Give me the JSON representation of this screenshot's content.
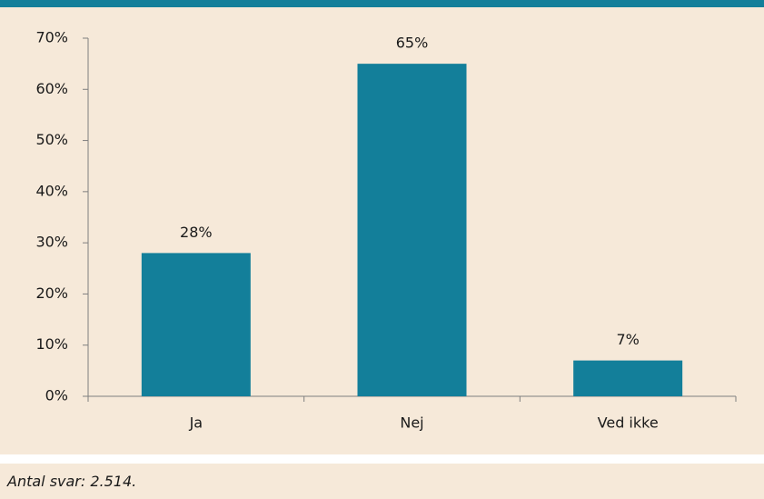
{
  "chart_data": {
    "type": "bar",
    "categories": [
      "Ja",
      "Nej",
      "Ved ikke"
    ],
    "values": [
      28,
      65,
      7
    ],
    "value_labels": [
      "28%",
      "65%",
      "7%"
    ],
    "color": "#137f9a",
    "ylim": [
      0,
      70
    ],
    "yticks": [
      {
        "value": 0,
        "label": "0%"
      },
      {
        "value": 10,
        "label": "10%"
      },
      {
        "value": 20,
        "label": "20%"
      },
      {
        "value": 30,
        "label": "30%"
      },
      {
        "value": 40,
        "label": "40%"
      },
      {
        "value": 50,
        "label": "50%"
      },
      {
        "value": 60,
        "label": "60%"
      },
      {
        "value": 70,
        "label": "70%"
      }
    ],
    "grid": false
  },
  "footnote": "Antal svar: 2.514."
}
